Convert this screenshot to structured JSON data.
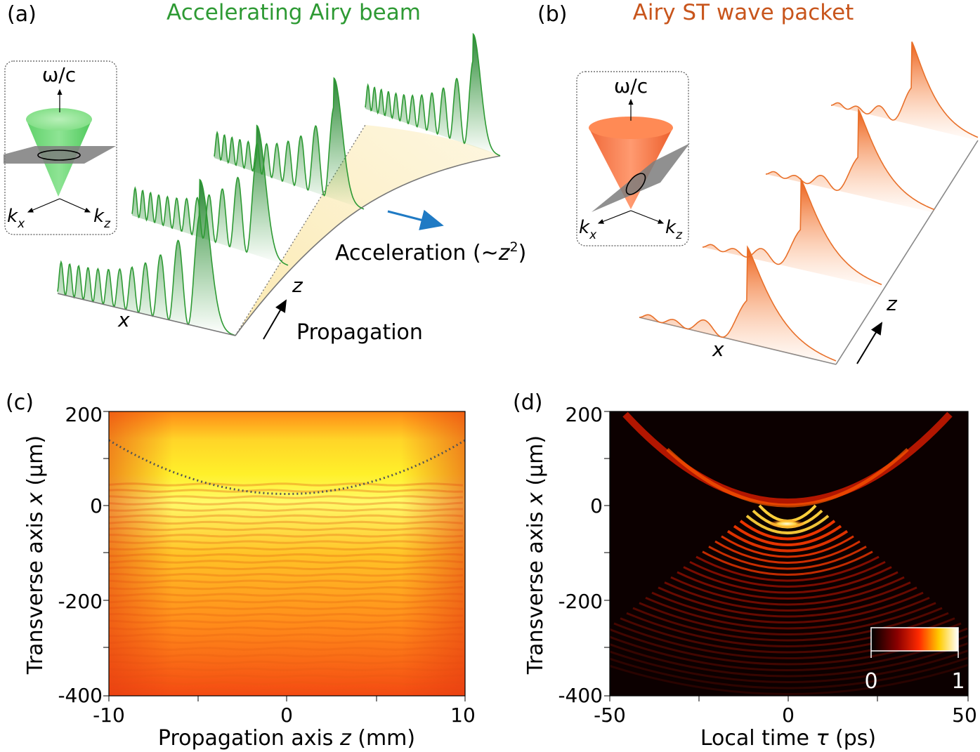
{
  "panel_a": {
    "label": "(a)",
    "title": "Accelerating Airy beam",
    "title_color": "#2e9a34",
    "inset": {
      "axis_vertical": "ω/c",
      "axis_left": "k",
      "axis_left_sub": "x",
      "axis_right": "k",
      "axis_right_sub": "z"
    },
    "x_label": "x",
    "z_label": "z",
    "propagation_label": "Propagation",
    "acceleration_label_prefix": "Acceleration (~",
    "acceleration_var": "z",
    "acceleration_exp": "2",
    "acceleration_label_suffix": ")",
    "curve_color": "#2e9a34",
    "arrow_color": "#1f7ac4"
  },
  "panel_b": {
    "label": "(b)",
    "title": "Airy ST wave packet",
    "title_color": "#c8551c",
    "inset": {
      "axis_vertical": "ω/c",
      "axis_left": "k",
      "axis_left_sub": "x",
      "axis_right": "k",
      "axis_right_sub": "z"
    },
    "x_label": "x",
    "z_label": "z",
    "curve_color": "#e8702a"
  },
  "panel_c": {
    "label": "(c)",
    "xlabel_prefix": "Propagation axis ",
    "xlabel_var": "z",
    "xlabel_unit": " (mm)",
    "ylabel_prefix": "Transverse axis ",
    "ylabel_var": "x",
    "ylabel_unit": " (μm)",
    "xticks": [
      "-10",
      "0",
      "10"
    ],
    "yticks": [
      "200",
      "0",
      "-200",
      "-400"
    ]
  },
  "panel_d": {
    "label": "(d)",
    "xlabel_prefix": "Local time ",
    "xlabel_var": "τ",
    "xlabel_unit": " (ps)",
    "ylabel_prefix": "Transverse axis ",
    "ylabel_var": "x",
    "ylabel_unit": " (μm)",
    "xticks": [
      "-50",
      "0",
      "50"
    ],
    "yticks": [
      "200",
      "0",
      "-200",
      "-400"
    ],
    "colorbar": {
      "min_label": "0",
      "max_label": "1"
    }
  },
  "chart_data": [
    {
      "type": "heatmap",
      "title": "",
      "xlabel": "Propagation axis z (mm)",
      "ylabel": "Transverse axis x (μm)",
      "xlim": [
        -10,
        10
      ],
      "ylim": [
        -400,
        200
      ],
      "overlay_curve": {
        "style": "dotted",
        "x": [
          -10,
          -5,
          0,
          5,
          10
        ],
        "y": [
          135,
          47,
          18,
          47,
          135
        ]
      }
    },
    {
      "type": "heatmap",
      "title": "",
      "xlabel": "Local time τ (ps)",
      "ylabel": "Transverse axis x (μm)",
      "xlim": [
        -50,
        50
      ],
      "ylim": [
        -400,
        200
      ],
      "colorbar_range": [
        0,
        1
      ]
    }
  ]
}
